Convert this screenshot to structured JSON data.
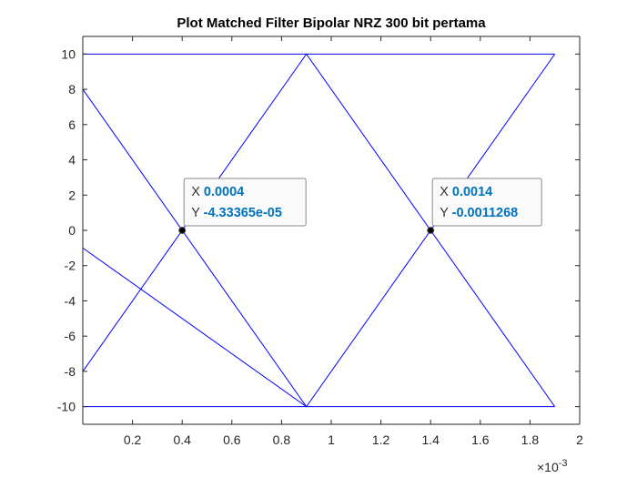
{
  "chart_data": {
    "type": "line",
    "title": "Plot Matched Filter Bipolar NRZ 300 bit pertama",
    "xlabel": "",
    "ylabel": "",
    "xlim": [
      0,
      0.002
    ],
    "ylim": [
      -11,
      11
    ],
    "x_exponent_label": "×10",
    "x_exponent_power": "-3",
    "x_ticks": [
      {
        "value": 0.0002,
        "label": "0.2"
      },
      {
        "value": 0.0004,
        "label": "0.4"
      },
      {
        "value": 0.0006,
        "label": "0.6"
      },
      {
        "value": 0.0008,
        "label": "0.8"
      },
      {
        "value": 0.001,
        "label": "1"
      },
      {
        "value": 0.0012,
        "label": "1.2"
      },
      {
        "value": 0.0014,
        "label": "1.4"
      },
      {
        "value": 0.0016,
        "label": "1.6"
      },
      {
        "value": 0.0018,
        "label": "1.8"
      },
      {
        "value": 0.002,
        "label": "2"
      }
    ],
    "y_ticks": [
      {
        "value": 10,
        "label": "10"
      },
      {
        "value": 8,
        "label": "8"
      },
      {
        "value": 6,
        "label": "6"
      },
      {
        "value": 4,
        "label": "4"
      },
      {
        "value": 2,
        "label": "2"
      },
      {
        "value": 0,
        "label": "0"
      },
      {
        "value": -2,
        "label": "-2"
      },
      {
        "value": -4,
        "label": "-4"
      },
      {
        "value": -6,
        "label": "-6"
      },
      {
        "value": -8,
        "label": "-8"
      },
      {
        "value": -10,
        "label": "-10"
      }
    ],
    "grid": false,
    "line_color": "#0000ff",
    "series": [
      {
        "x": [
          0,
          0.0009,
          0.0019
        ],
        "y": [
          10,
          10,
          10
        ]
      },
      {
        "x": [
          0,
          0.0009,
          0.0019
        ],
        "y": [
          -10,
          -10,
          -10
        ]
      },
      {
        "x": [
          0,
          0.0009,
          0.0019
        ],
        "y": [
          8,
          -10,
          10
        ]
      },
      {
        "x": [
          0,
          0.0009,
          0.0019
        ],
        "y": [
          -8,
          10,
          -10
        ]
      },
      {
        "x": [
          0,
          0.0009
        ],
        "y": [
          -1,
          -10
        ]
      }
    ],
    "datatips": [
      {
        "x_value": 0.0004,
        "y_value": -4.33365e-05,
        "x_text": "0.0004",
        "y_text": "-4.33365e-05",
        "x_key": "X",
        "y_key": "Y"
      },
      {
        "x_value": 0.0014,
        "y_value": -0.0011268,
        "x_text": "0.0014",
        "y_text": "-0.0011268",
        "x_key": "X",
        "y_key": "Y"
      }
    ]
  }
}
